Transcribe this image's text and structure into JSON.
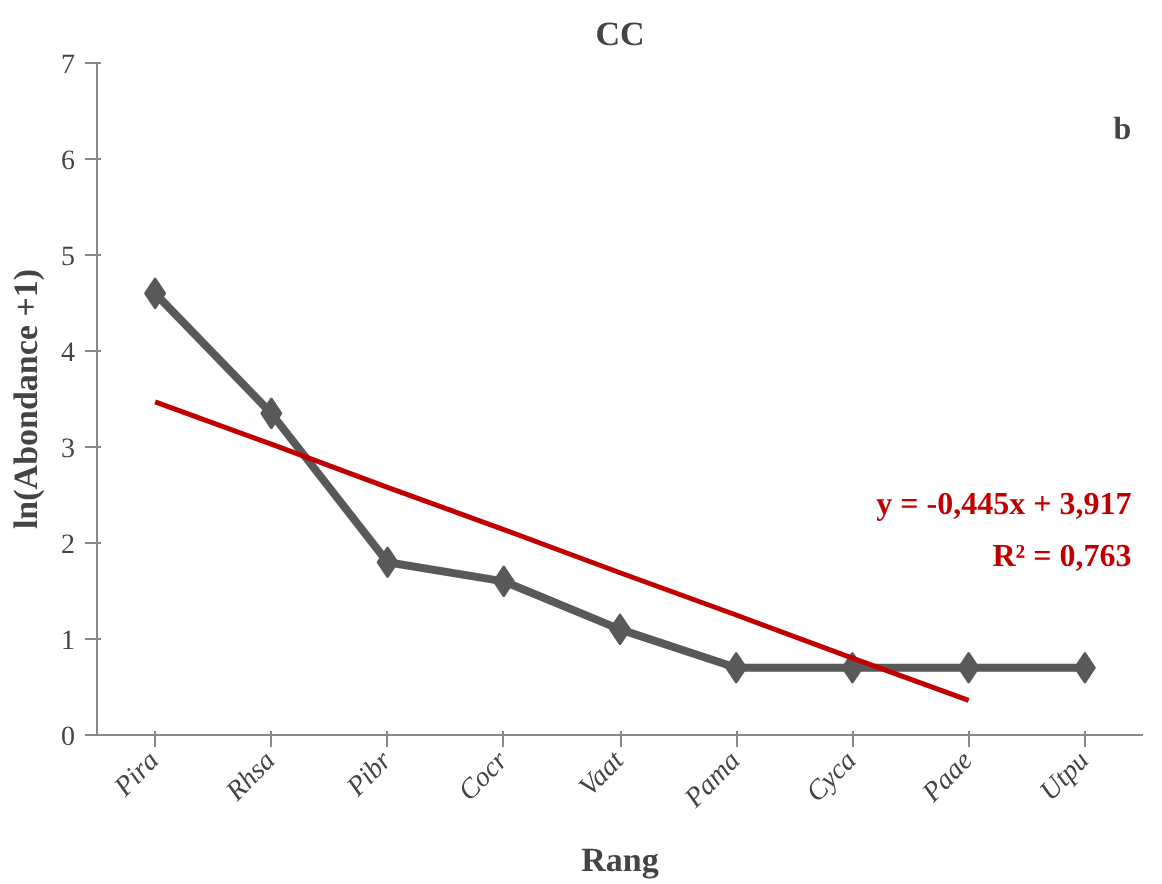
{
  "chart_data": {
    "type": "line",
    "title": "CC",
    "xlabel": "Rang",
    "ylabel": "ln(Abondance +1)",
    "categories": [
      "Pira",
      "Rhsa",
      "Pibr",
      "Cocr",
      "Vaat",
      "Pama",
      "Cyca",
      "Paae",
      "Utpu"
    ],
    "series": [
      {
        "color": "#595959",
        "marker": "diamond",
        "values": [
          4.6,
          3.35,
          1.8,
          1.6,
          1.1,
          0.7,
          0.7,
          0.7,
          0.7
        ]
      },
      {
        "type": "line",
        "color": "#c00000",
        "marker": "none",
        "values": [
          3.47,
          3.03,
          2.58,
          2.14,
          1.69,
          1.25,
          0.8,
          0.36,
          null
        ]
      }
    ],
    "ylim": [
      0,
      7
    ],
    "yticks": [
      0,
      1,
      2,
      3,
      4,
      5,
      6,
      7
    ],
    "grid": false,
    "annotations": [
      "b",
      "y = -0,445x + 3,917",
      "R² = 0,763"
    ]
  }
}
